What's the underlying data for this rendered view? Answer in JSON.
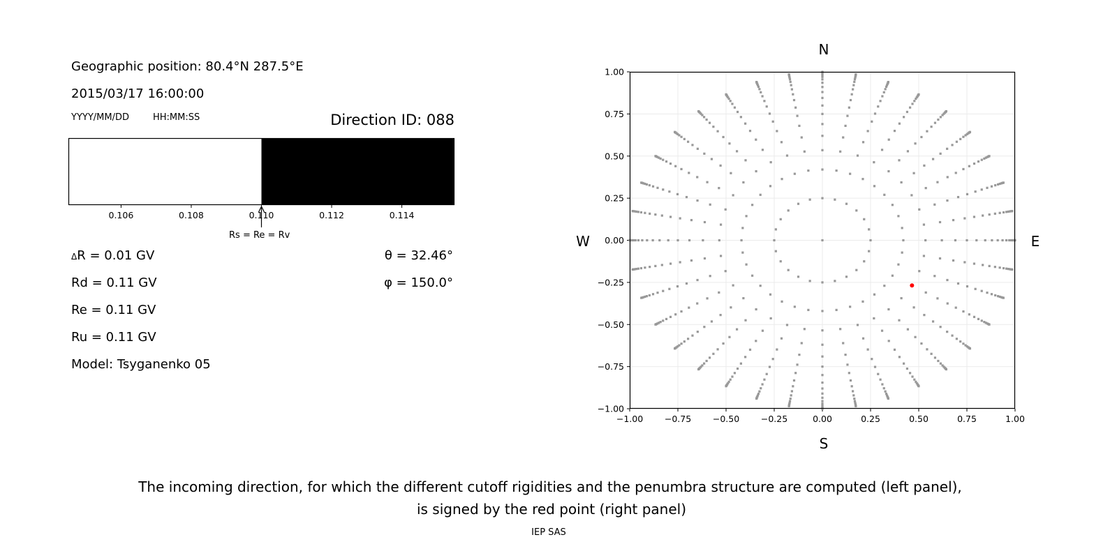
{
  "left_panel": {
    "geo_position": "Geographic position: 80.4°N 287.5°E",
    "datetime": "2015/03/17 16:00:00",
    "date_format": "YYYY/MM/DD",
    "time_format": "HH:MM:SS",
    "direction_id": "Direction ID: 088",
    "delta_r_symbol": "Δ",
    "delta_r": "R = 0.01 GV",
    "rd": "Rd = 0.11 GV",
    "re": "Re = 0.11 GV",
    "ru": "Ru = 0.11 GV",
    "model": "Model: Tsyganenko 05",
    "theta": "θ = 32.46°",
    "phi": "φ = 150.0°"
  },
  "chart_data": [
    {
      "type": "bar",
      "description_label": "Rs = Re = Rv",
      "xlim": [
        0.1045,
        0.1155
      ],
      "xticks": [
        "0.106",
        "0.108",
        "0.110",
        "0.112",
        "0.114"
      ],
      "xtick_values": [
        0.106,
        0.108,
        0.11,
        0.112,
        0.114
      ],
      "segments": [
        {
          "from": 0.1045,
          "to": 0.11,
          "color": "#ffffff"
        },
        {
          "from": 0.11,
          "to": 0.1155,
          "color": "#000000"
        }
      ],
      "arrow_at": 0.11
    },
    {
      "type": "scatter",
      "xlim": [
        -1,
        1
      ],
      "ylim": [
        -1,
        1
      ],
      "grid": true,
      "xticks": [
        "−1.00",
        "−0.75",
        "−0.50",
        "−0.25",
        "0.00",
        "0.25",
        "0.50",
        "0.75",
        "1.00"
      ],
      "yticks": [
        "1.00",
        "0.75",
        "0.50",
        "0.25",
        "0.00",
        "−0.25",
        "−0.50",
        "−0.75",
        "−1.00"
      ],
      "tick_values": [
        -1,
        -0.75,
        -0.5,
        -0.25,
        0,
        0.25,
        0.5,
        0.75,
        1
      ],
      "compass": {
        "north": "N",
        "south": "S",
        "west": "W",
        "east": "E"
      },
      "grid_azimuth_step_deg": 10,
      "grid_radii": [
        0.42,
        0.535,
        0.62,
        0.69,
        0.75,
        0.8,
        0.845,
        0.88,
        0.91,
        0.935,
        0.955,
        0.97,
        0.98,
        0.988,
        0.994,
        0.998,
        1.0
      ],
      "inner_ring_radius": 0.25,
      "inner_ring_step_deg": 15,
      "center_point": [
        0,
        0
      ],
      "point_color": "#999999",
      "selected_point": {
        "x": 0.465,
        "y": -0.268,
        "color": "#ff0000"
      }
    }
  ],
  "caption": {
    "line1": "The incoming direction, for which the different cutoff rigidities and the penumbra structure are computed (left panel),",
    "line2": "is signed by the red point (right panel)"
  },
  "footer": "IEP SAS"
}
